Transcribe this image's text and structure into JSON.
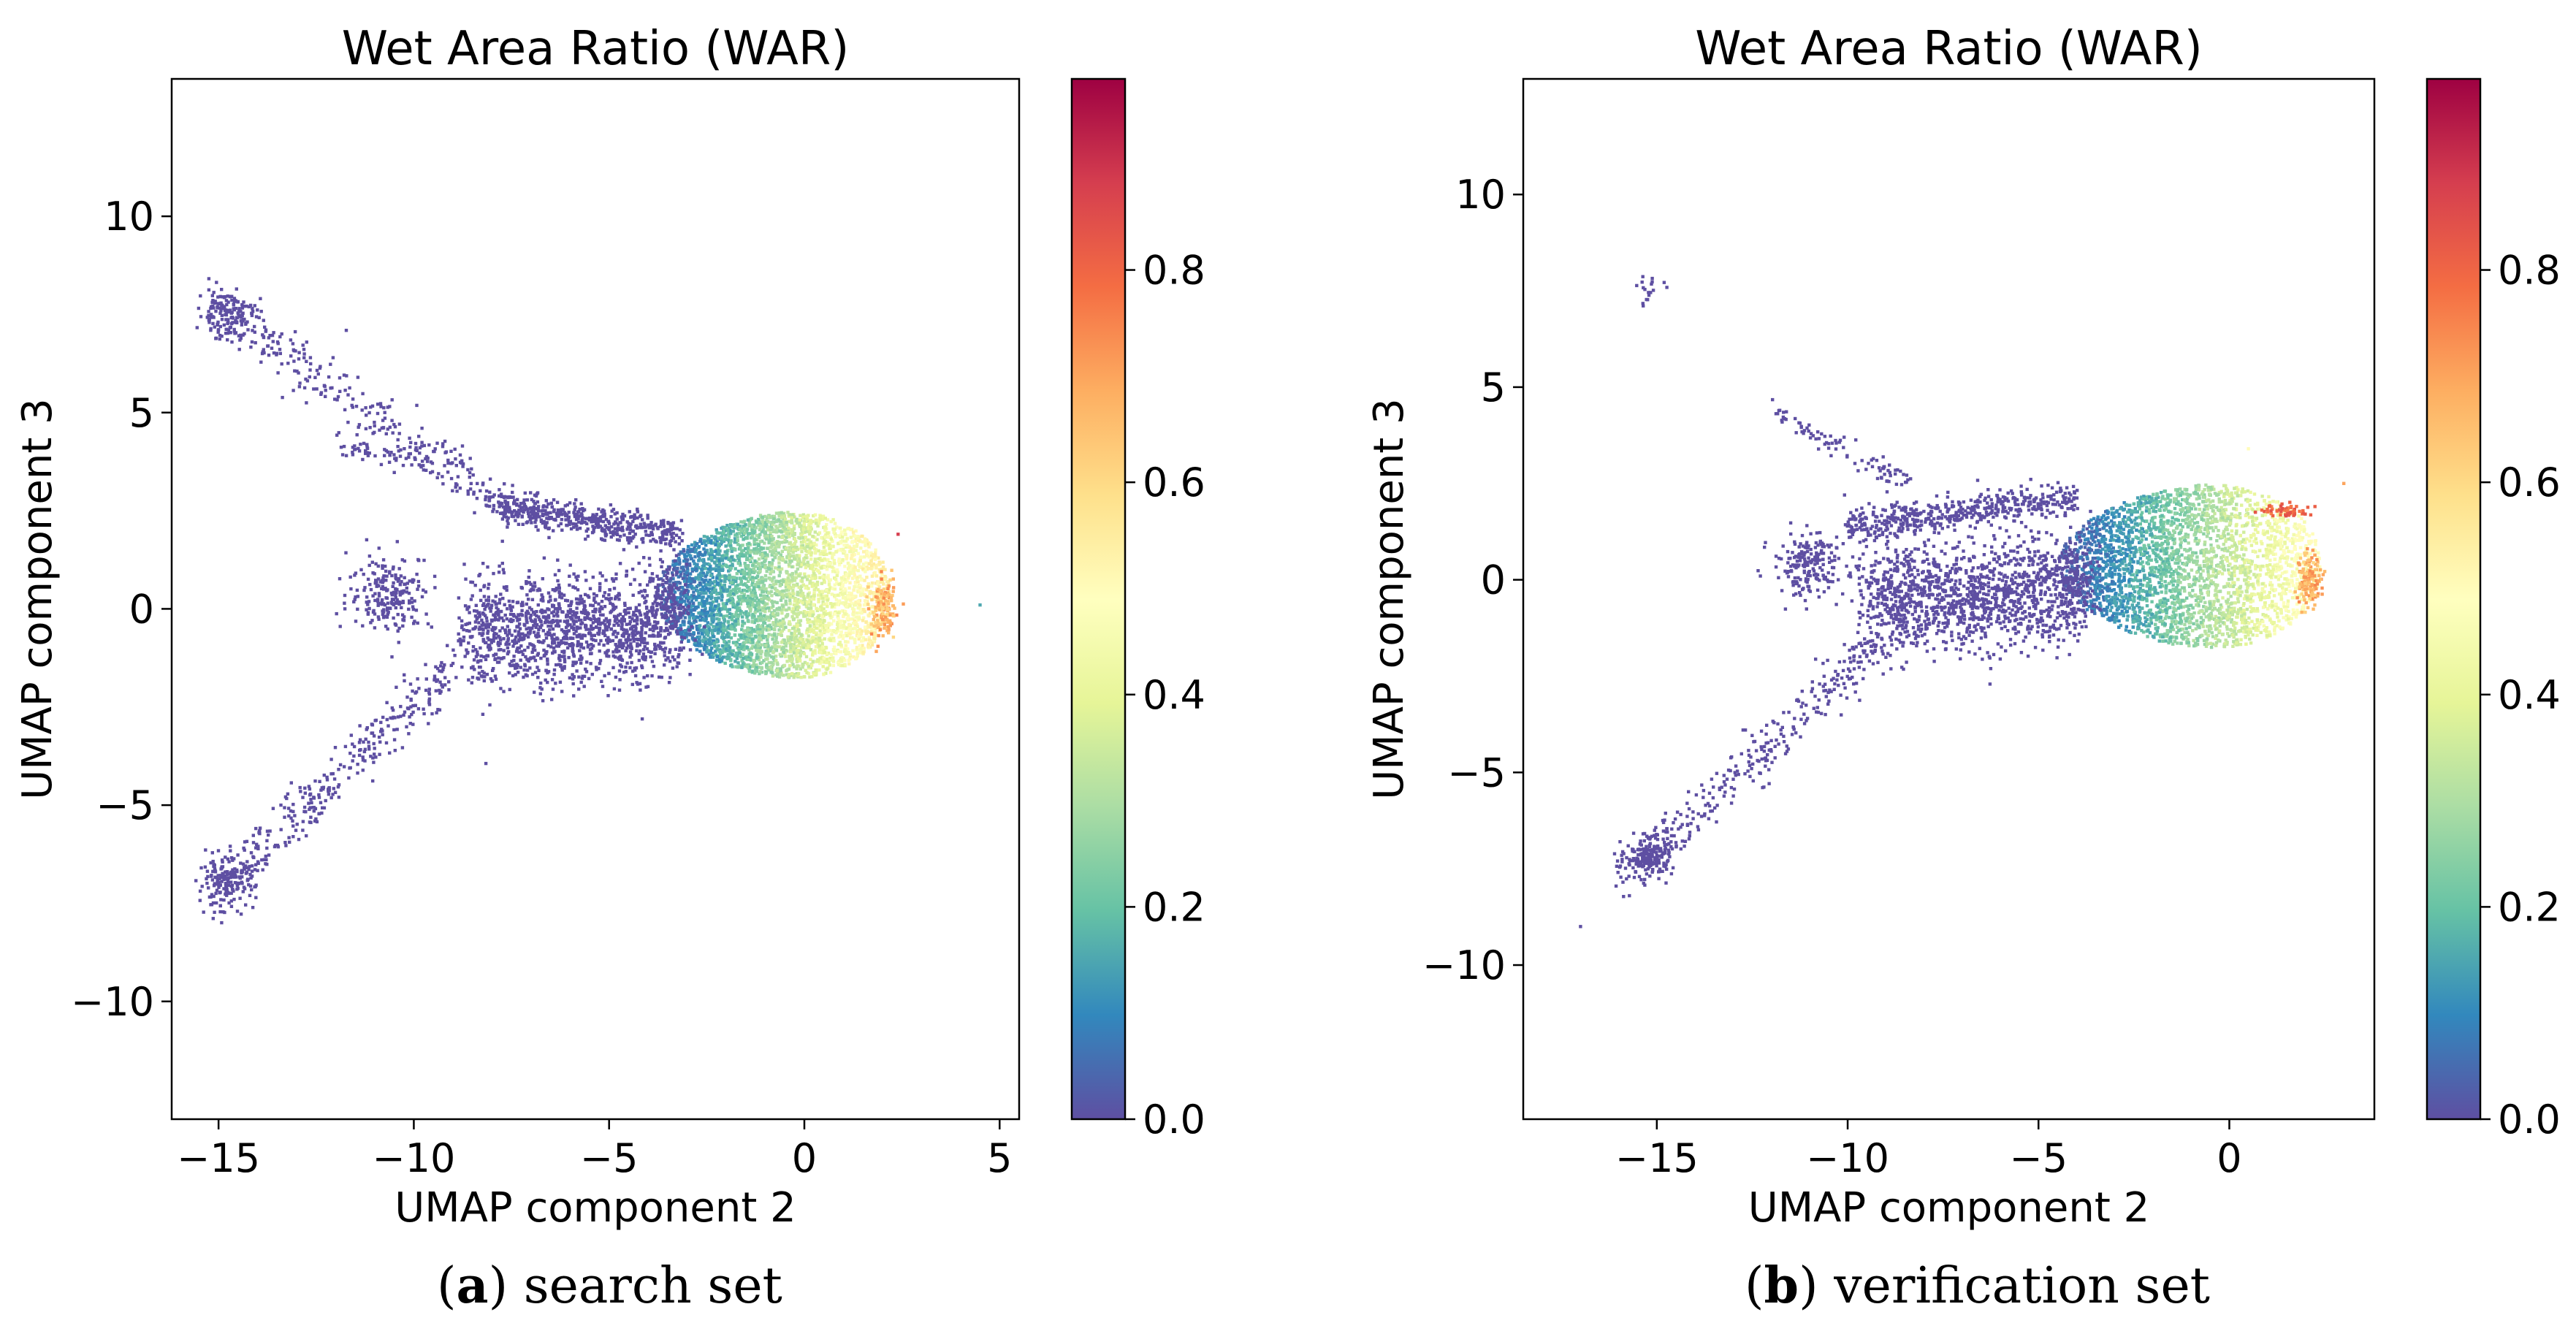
{
  "colormap": {
    "name": "Spectral_r",
    "stops": [
      "#5e4fa2",
      "#3288bd",
      "#66c2a5",
      "#abdda4",
      "#e6f598",
      "#ffffbf",
      "#fee08b",
      "#fdae61",
      "#f46d43",
      "#d53e4f",
      "#9e0142"
    ]
  },
  "chart_data": [
    {
      "type": "scatter",
      "title": "Wet Area Ratio (WAR)",
      "xlabel": "UMAP component 2",
      "ylabel": "UMAP component 3",
      "xlim": [
        -16.2,
        5.5
      ],
      "ylim": [
        -13,
        13.5
      ],
      "xticks": [
        -15,
        -10,
        -5,
        0,
        5
      ],
      "xtick_labels": [
        "−15",
        "−10",
        "−5",
        "0",
        "5"
      ],
      "yticks": [
        -10,
        -5,
        0,
        5,
        10
      ],
      "ytick_labels": [
        "−10",
        "−5",
        "0",
        "5",
        "10"
      ],
      "colorbar": {
        "label": "WAR",
        "range": [
          0,
          0.98
        ],
        "ticks": [
          0,
          0.2,
          0.4,
          0.6,
          0.8
        ],
        "tick_labels": [
          "0.0",
          "0.2",
          "0.4",
          "0.6",
          "0.8"
        ]
      },
      "caption_letter": "a",
      "caption_text": " search set",
      "series": [
        {
          "name": "main-cluster",
          "shape": "blob",
          "x_range": [
            -3.8,
            2.2
          ],
          "y_range": [
            -2.1,
            2.8
          ],
          "war_range": [
            0.0,
            0.55
          ],
          "count": 3800
        },
        {
          "name": "core-stem",
          "shape": "band",
          "from": [
            -8.5,
            -0.6
          ],
          "to": [
            -3.2,
            -0.4
          ],
          "spread": 0.7,
          "war": 0.0,
          "count": 1400
        },
        {
          "name": "upper-stem",
          "shape": "band",
          "from": [
            -7.8,
            2.6
          ],
          "to": [
            -3.2,
            1.9
          ],
          "spread": 0.2,
          "war": 0.0,
          "count": 500
        },
        {
          "name": "upper-arm",
          "shape": "band",
          "from": [
            -15.2,
            7.8
          ],
          "to": [
            -7.5,
            2.5
          ],
          "spread": 0.35,
          "war": 0.0,
          "count": 320
        },
        {
          "name": "lower-arm",
          "shape": "band",
          "from": [
            -15.2,
            -7.3
          ],
          "to": [
            -9.0,
            -1.5
          ],
          "spread": 0.35,
          "war": 0.0,
          "count": 320
        },
        {
          "name": "upper-arm-end",
          "shape": "cluster",
          "center": [
            -14.8,
            7.5
          ],
          "spread": [
            0.6,
            0.5
          ],
          "war": 0.0,
          "count": 130
        },
        {
          "name": "lower-arm-end",
          "shape": "cluster",
          "center": [
            -14.8,
            -7.0
          ],
          "spread": [
            0.6,
            0.5
          ],
          "war": 0.0,
          "count": 160
        },
        {
          "name": "left-cluster",
          "shape": "cluster",
          "center": [
            -10.6,
            0.4
          ],
          "spread": [
            0.9,
            0.8
          ],
          "war": 0.0,
          "count": 220
        },
        {
          "name": "upper-branch",
          "shape": "band",
          "from": [
            -12.0,
            4.2
          ],
          "to": [
            -9.5,
            3.6
          ],
          "spread": 0.15,
          "war": 0.0,
          "count": 60
        },
        {
          "name": "high-war-edge",
          "shape": "cluster",
          "center": [
            2.0,
            0.0
          ],
          "spread": [
            0.25,
            0.6
          ],
          "war_range": [
            0.6,
            0.75
          ],
          "count": 140
        },
        {
          "name": "isolated-points",
          "shape": "points",
          "points": [
            [
              2.4,
              1.9,
              0.88
            ],
            [
              4.5,
              0.1,
              0.15
            ]
          ]
        }
      ]
    },
    {
      "type": "scatter",
      "title": "Wet Area Ratio (WAR)",
      "xlabel": "UMAP component 2",
      "ylabel": "UMAP component 3",
      "xlim": [
        -18.5,
        3.8
      ],
      "ylim": [
        -14,
        13
      ],
      "xticks": [
        -15,
        -10,
        -5,
        0
      ],
      "xtick_labels": [
        "−15",
        "−10",
        "−5",
        "0"
      ],
      "yticks": [
        -10,
        -5,
        0,
        5,
        10
      ],
      "ytick_labels": [
        "−10",
        "−5",
        "0",
        "5",
        "10"
      ],
      "colorbar": {
        "label": "WAR",
        "range": [
          0,
          0.98
        ],
        "ticks": [
          0,
          0.2,
          0.4,
          0.6,
          0.8
        ],
        "tick_labels": [
          "0.0",
          "0.2",
          "0.4",
          "0.6",
          "0.8"
        ]
      },
      "caption_letter": "b",
      "caption_text": " verification set",
      "series": [
        {
          "name": "main-cluster",
          "shape": "blob",
          "x_range": [
            -4.5,
            2.4
          ],
          "y_range": [
            -2.1,
            2.8
          ],
          "war_range": [
            0.0,
            0.5
          ],
          "count": 3800
        },
        {
          "name": "core-stem",
          "shape": "band",
          "from": [
            -9.5,
            -0.5
          ],
          "to": [
            -3.8,
            -0.3
          ],
          "spread": 0.7,
          "war": 0.0,
          "count": 1400
        },
        {
          "name": "upper-stem",
          "shape": "band",
          "from": [
            -10.0,
            1.4
          ],
          "to": [
            -4.0,
            2.1
          ],
          "spread": 0.2,
          "war": 0.0,
          "count": 500
        },
        {
          "name": "lower-arm",
          "shape": "band",
          "from": [
            -16.0,
            -7.8
          ],
          "to": [
            -9.0,
            -1.5
          ],
          "spread": 0.35,
          "war": 0.0,
          "count": 320
        },
        {
          "name": "lower-arm-end",
          "shape": "cluster",
          "center": [
            -15.2,
            -7.2
          ],
          "spread": [
            0.5,
            0.4
          ],
          "war": 0.0,
          "count": 180
        },
        {
          "name": "left-cluster",
          "shape": "cluster",
          "center": [
            -11.0,
            0.4
          ],
          "spread": [
            0.8,
            0.7
          ],
          "war": 0.0,
          "count": 200
        },
        {
          "name": "upper-branch",
          "shape": "band",
          "from": [
            -12.0,
            4.5
          ],
          "to": [
            -8.5,
            2.5
          ],
          "spread": 0.2,
          "war": 0.0,
          "count": 90
        },
        {
          "name": "top-outliers",
          "shape": "cluster",
          "center": [
            -15.2,
            7.5
          ],
          "spread": [
            0.3,
            0.3
          ],
          "war": 0.0,
          "count": 18
        },
        {
          "name": "high-war-edge",
          "shape": "cluster",
          "center": [
            2.1,
            0.0
          ],
          "spread": [
            0.25,
            0.6
          ],
          "war_range": [
            0.6,
            0.75
          ],
          "count": 140
        },
        {
          "name": "high-war-patch",
          "shape": "cluster",
          "center": [
            1.5,
            1.8
          ],
          "spread": [
            0.5,
            0.12
          ],
          "war_range": [
            0.75,
            0.85
          ],
          "count": 60
        },
        {
          "name": "isolated-points",
          "shape": "points",
          "points": [
            [
              -17.0,
              -9.0,
              0.0
            ],
            [
              3.0,
              2.5,
              0.7
            ],
            [
              0.5,
              3.4,
              0.5
            ]
          ]
        }
      ]
    }
  ]
}
